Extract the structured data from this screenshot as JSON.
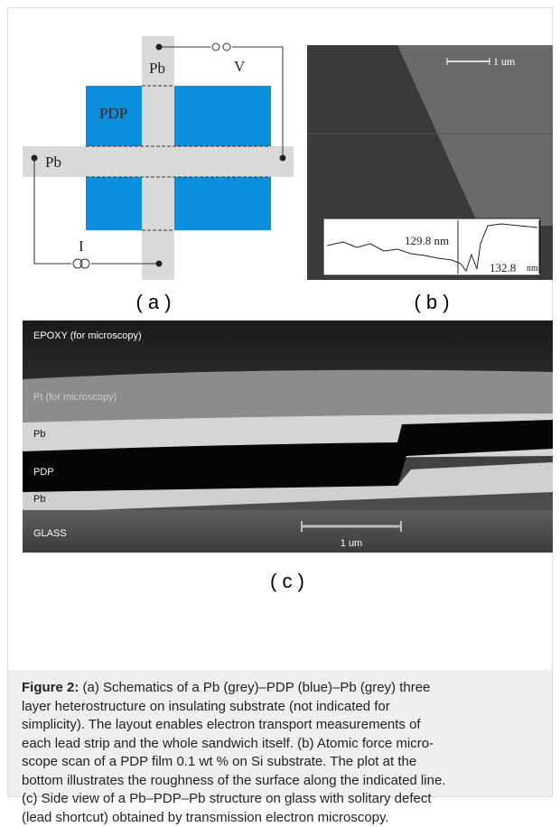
{
  "figure": {
    "panel_a": {
      "labels": {
        "pb_top": "Pb",
        "v": "V",
        "pdp": "PDP",
        "pb_left": "Pb",
        "i": "I"
      },
      "caption": "( a )"
    },
    "panel_b": {
      "scale_bar": "1 um",
      "profile_left": "129.8 nm",
      "profile_right": "132.8",
      "profile_right_unit": "nm",
      "caption": "( b )"
    },
    "panel_c": {
      "layers": [
        "EPOXY (for microscopy)",
        "Pt (for microscopy)",
        "Pb",
        "PDP",
        "Pb",
        "GLASS"
      ],
      "scale_bar": "1 um",
      "caption": "( c )"
    }
  },
  "caption": {
    "label": "Figure 2:",
    "lines": [
      "(a) Schematics of a Pb (grey)–PDP (blue)–Pb (grey) three",
      "layer heterostructure on insulating substrate (not indicated for",
      "simplicity). The layout enables electron transport measurements of",
      "each lead strip and the whole sandwich itself. (b) Atomic force micro-",
      "scope scan of a PDP film 0.1 wt % on Si substrate. The plot at the",
      "bottom illustrates the roughness of the surface along the indicated line.",
      "(c) Side view of a Pb–PDP–Pb structure on glass with solitary defect",
      "(lead shortcut) obtained by transmission electron microscopy."
    ]
  }
}
